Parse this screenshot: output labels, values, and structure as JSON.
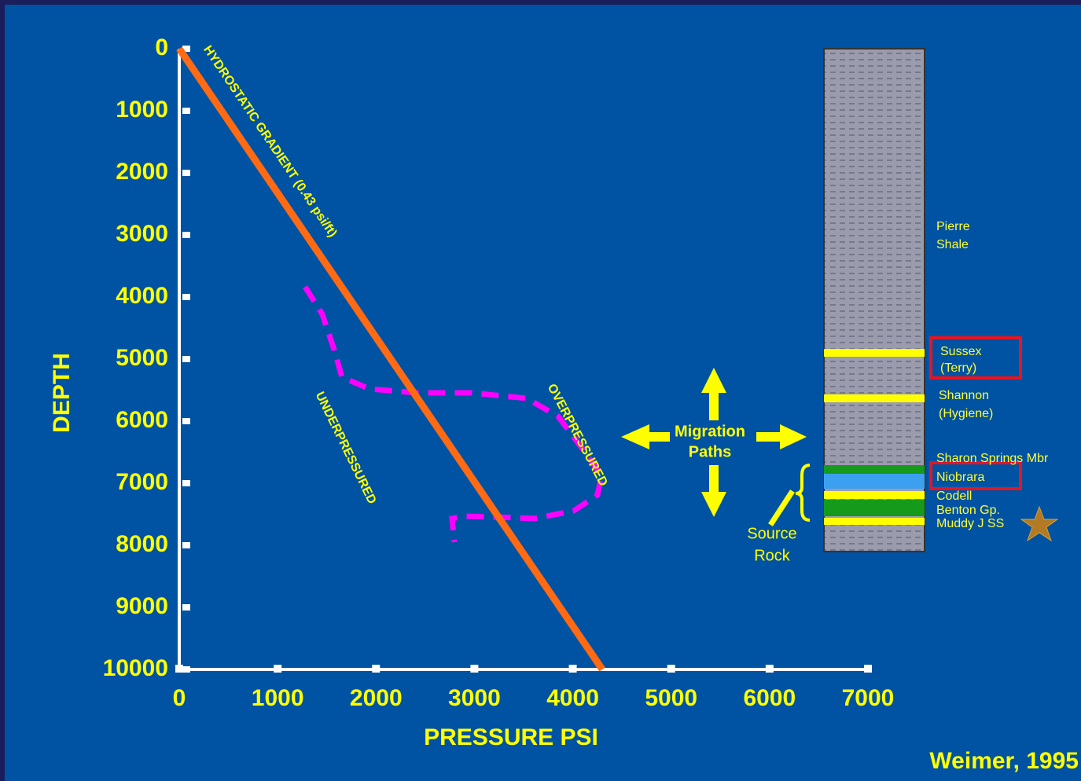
{
  "chart_data": {
    "type": "line",
    "x": [
      0,
      4300
    ],
    "values": [
      0,
      10000
    ],
    "color": "#ff6a13",
    "xlabel": "PRESSURE PSI",
    "ylabel": "DEPTH",
    "xlim": [
      0,
      7000
    ],
    "ylim": [
      0,
      10000
    ],
    "xticks": [
      0,
      1000,
      2000,
      3000,
      4000,
      5000,
      6000,
      7000
    ],
    "yticks": [
      0,
      1000,
      2000,
      3000,
      4000,
      5000,
      6000,
      7000,
      8000,
      9000,
      10000
    ],
    "y_inverted": true,
    "annotations": {
      "gradient": "HYDROSTATIC GRADIENT (0.43 psi/ft)",
      "under": "UNDERPRESSURED",
      "over": "OVERPRESSURED",
      "migration": [
        "Migration",
        "Paths"
      ],
      "source": [
        "Source",
        "Rock"
      ]
    }
  },
  "column": {
    "pierre": [
      "Pierre",
      "Shale"
    ],
    "sussex": [
      "Sussex",
      "(Terry)"
    ],
    "shannon": [
      "Shannon",
      "(Hygiene)"
    ],
    "sharon": "Sharon Springs Mbr",
    "niobrara": "Niobrara",
    "codell": "Codell",
    "benton": "Benton Gp.",
    "muddy": "Muddy J SS"
  },
  "citation": "Weimer, 1995"
}
